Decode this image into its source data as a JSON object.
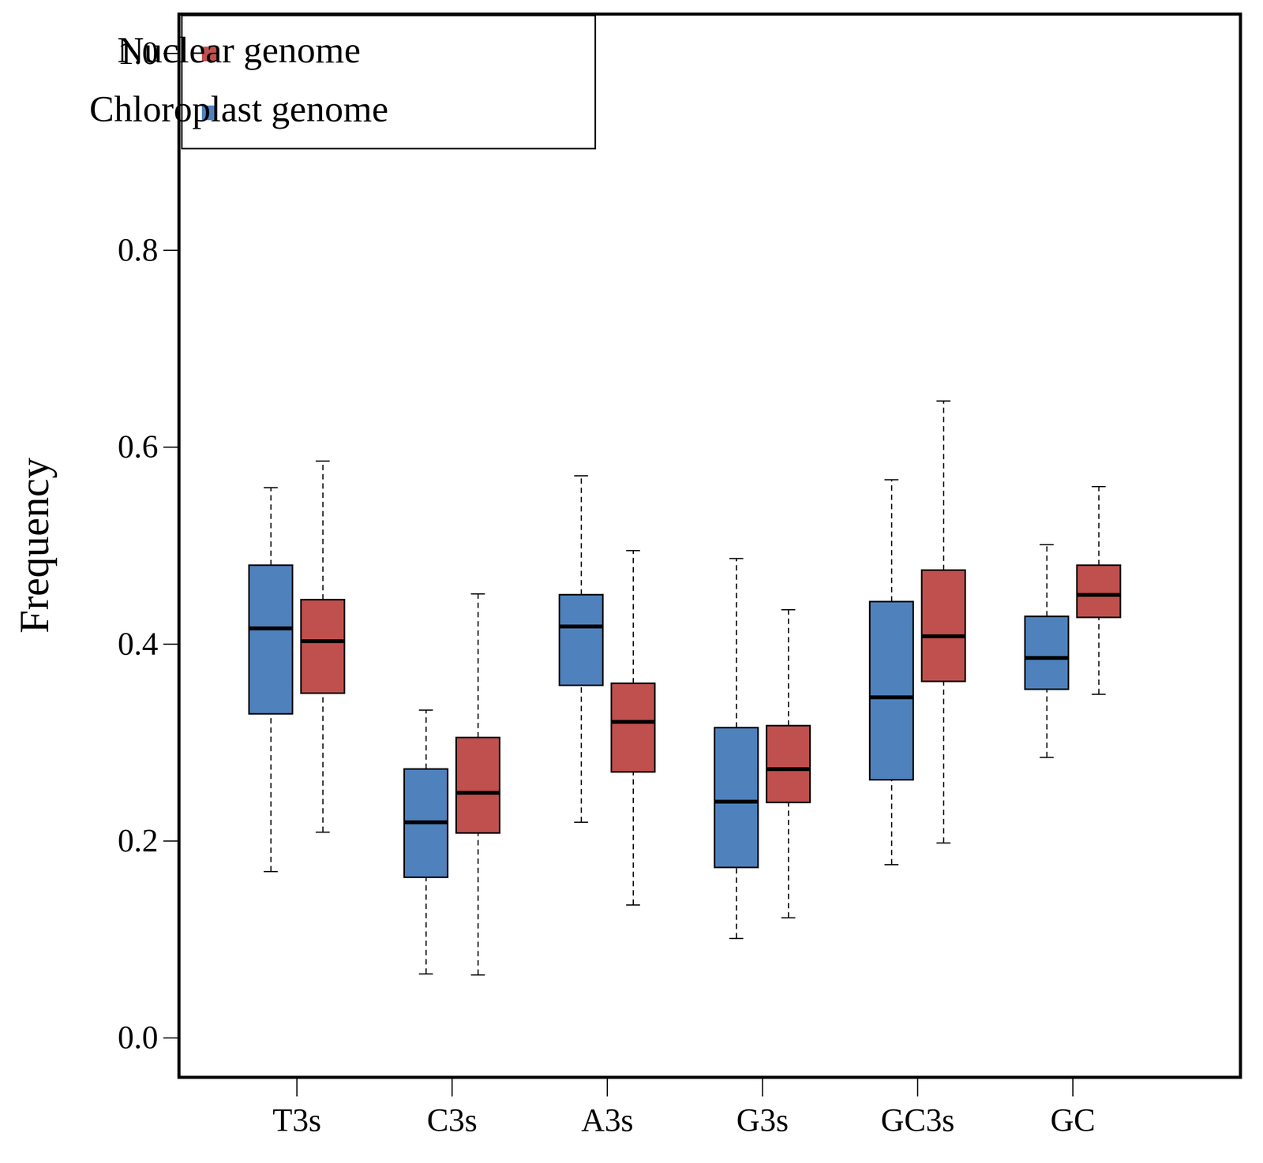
{
  "chart_data": {
    "type": "boxplot",
    "y_label": "Frequency",
    "categories": [
      "T3s",
      "C3s",
      "A3s",
      "G3s",
      "GC3s",
      "GC"
    ],
    "series": [
      {
        "name": "Chloroplast genome",
        "color": "#4f81bd",
        "whisker_low": [
          0.169,
          0.065,
          0.219,
          0.101,
          0.176,
          0.285
        ],
        "q1": [
          0.329,
          0.163,
          0.358,
          0.173,
          0.262,
          0.354
        ],
        "median": [
          0.416,
          0.219,
          0.418,
          0.24,
          0.346,
          0.386
        ],
        "q3": [
          0.48,
          0.273,
          0.45,
          0.315,
          0.443,
          0.428
        ],
        "whisker_high": [
          0.559,
          0.333,
          0.571,
          0.487,
          0.567,
          0.501
        ]
      },
      {
        "name": "Nuclear genome",
        "color": "#c0504d",
        "whisker_low": [
          0.209,
          0.064,
          0.135,
          0.122,
          0.198,
          0.349
        ],
        "q1": [
          0.35,
          0.208,
          0.27,
          0.239,
          0.362,
          0.427
        ],
        "median": [
          0.403,
          0.249,
          0.321,
          0.273,
          0.408,
          0.45
        ],
        "q3": [
          0.445,
          0.305,
          0.36,
          0.317,
          0.475,
          0.48
        ],
        "whisker_high": [
          0.586,
          0.451,
          0.495,
          0.435,
          0.647,
          0.56
        ]
      }
    ],
    "legend_order": [
      "Nuclear genome",
      "Chloroplast genome"
    ],
    "ylim": [
      -0.04,
      1.04
    ],
    "yticks": [
      {
        "value": 0,
        "label": "0.0"
      },
      0.2,
      0.4,
      0.6,
      0.8,
      {
        "value": 1,
        "label": "1.0"
      }
    ],
    "legend": "top-left",
    "grid": false
  }
}
